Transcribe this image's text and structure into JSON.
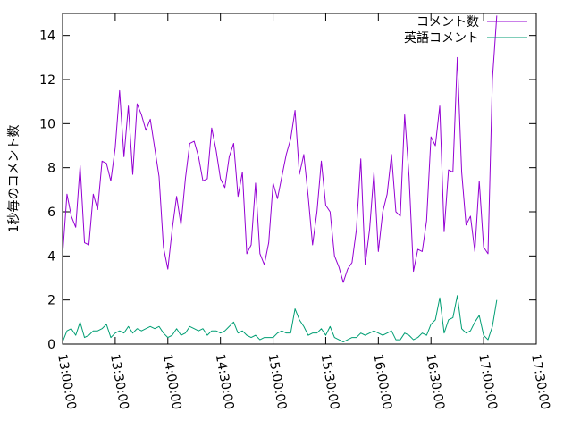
{
  "chart_data": {
    "type": "line",
    "ylabel": "1秒毎のコメント数",
    "ylim": [
      0,
      15
    ],
    "yticks": [
      0,
      2,
      4,
      6,
      8,
      10,
      12,
      14
    ],
    "xlim": [
      "13:00:00",
      "17:30:00"
    ],
    "xticks": [
      "13:00:00",
      "13:30:00",
      "14:00:00",
      "14:30:00",
      "15:00:00",
      "15:30:00",
      "16:00:00",
      "16:30:00",
      "17:00:00",
      "17:30:00"
    ],
    "legend_position": "top-right",
    "x_interval_minutes": 2.5,
    "x_start": "13:00:00",
    "series": [
      {
        "name": "コメント数",
        "color": "#9400d3",
        "values": [
          4.0,
          6.8,
          5.8,
          5.3,
          8.1,
          4.6,
          4.5,
          6.8,
          6.1,
          8.3,
          8.2,
          7.4,
          8.9,
          11.5,
          8.5,
          10.8,
          7.7,
          10.9,
          10.4,
          9.7,
          10.2,
          8.9,
          7.6,
          4.4,
          3.4,
          5.2,
          6.7,
          5.4,
          7.5,
          9.1,
          9.2,
          8.5,
          7.4,
          7.5,
          9.8,
          8.8,
          7.5,
          7.1,
          8.5,
          9.1,
          6.7,
          7.8,
          4.1,
          4.5,
          7.3,
          4.1,
          3.6,
          4.6,
          7.3,
          6.6,
          7.6,
          8.6,
          9.3,
          10.6,
          7.7,
          8.6,
          6.7,
          4.5,
          6.0,
          8.3,
          6.3,
          6.0,
          4.0,
          3.5,
          2.8,
          3.4,
          3.7,
          5.2,
          8.4,
          3.6,
          5.2,
          7.8,
          4.2,
          6.0,
          6.8,
          8.6,
          6.0,
          5.8,
          10.4,
          7.6,
          3.3,
          4.3,
          4.2,
          5.6,
          9.4,
          9.0,
          10.8,
          5.1,
          7.9,
          7.8,
          13.0,
          7.8,
          5.4,
          5.8,
          4.2,
          7.4,
          4.4,
          4.1,
          12.0,
          14.9
        ]
      },
      {
        "name": "英語コメント",
        "color": "#009e73",
        "values": [
          0.1,
          0.6,
          0.7,
          0.4,
          1.0,
          0.3,
          0.4,
          0.6,
          0.6,
          0.7,
          0.9,
          0.3,
          0.5,
          0.6,
          0.5,
          0.8,
          0.5,
          0.7,
          0.6,
          0.7,
          0.8,
          0.7,
          0.8,
          0.5,
          0.3,
          0.4,
          0.7,
          0.4,
          0.5,
          0.8,
          0.7,
          0.6,
          0.7,
          0.4,
          0.6,
          0.6,
          0.5,
          0.6,
          0.8,
          1.0,
          0.5,
          0.6,
          0.4,
          0.3,
          0.4,
          0.2,
          0.3,
          0.3,
          0.3,
          0.5,
          0.6,
          0.5,
          0.5,
          1.6,
          1.1,
          0.8,
          0.4,
          0.5,
          0.5,
          0.7,
          0.4,
          0.8,
          0.3,
          0.2,
          0.1,
          0.2,
          0.3,
          0.3,
          0.5,
          0.4,
          0.5,
          0.6,
          0.5,
          0.4,
          0.5,
          0.6,
          0.2,
          0.2,
          0.5,
          0.4,
          0.2,
          0.3,
          0.5,
          0.4,
          0.9,
          1.1,
          2.1,
          0.5,
          1.1,
          1.2,
          2.2,
          0.7,
          0.5,
          0.6,
          1.0,
          1.3,
          0.4,
          0.2,
          0.8,
          2.0
        ]
      }
    ]
  }
}
